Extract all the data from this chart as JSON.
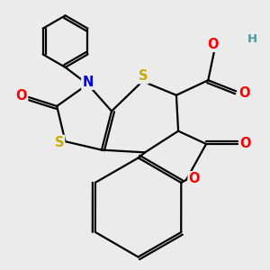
{
  "background_color": "#ebebeb",
  "atom_colors": {
    "C": "#000000",
    "N": "#0000ee",
    "O": "#ff0000",
    "S": "#ccaa00",
    "H": "#4a9a9a"
  },
  "bond_lw": 1.6,
  "dbo": 0.055,
  "figsize": [
    3.0,
    3.0
  ],
  "dpi": 100
}
